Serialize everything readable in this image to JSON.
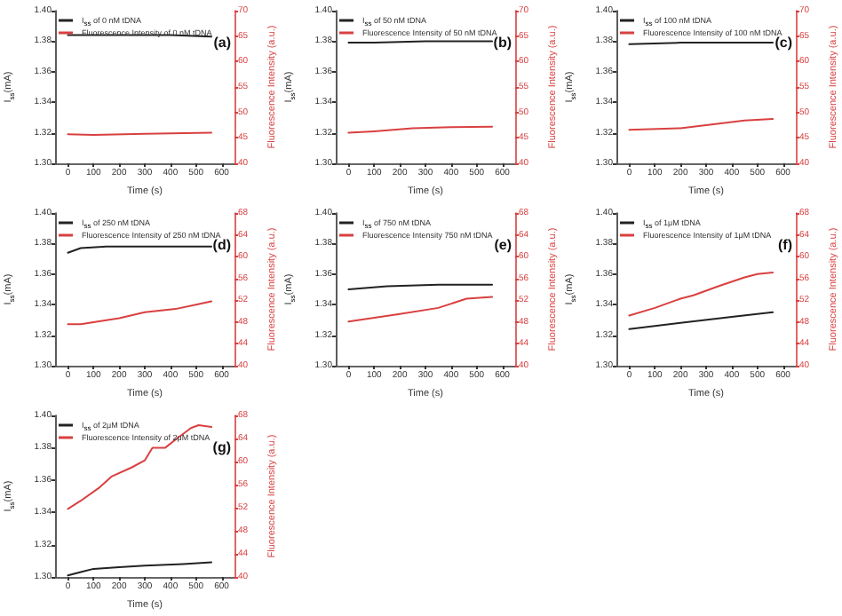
{
  "chart_data": [
    {
      "type": "line",
      "annotations": [
        "(a)"
      ],
      "xlabel": "Time (s)",
      "ylabel": "I$_{ss}$(mA)",
      "y2label": "Fluorescence Intensity (a.u.)",
      "xlim": [
        -50,
        650
      ],
      "xticks": [
        0,
        100,
        200,
        300,
        400,
        500,
        600
      ],
      "ylim": [
        1.3,
        1.4
      ],
      "yticks": [
        {
          "value": 1.3,
          "label": "1.30"
        },
        {
          "value": 1.32,
          "label": "1.32"
        },
        {
          "value": 1.34,
          "label": "1.34"
        },
        {
          "value": 1.36,
          "label": "1.36"
        },
        {
          "value": 1.38,
          "label": "1.38"
        },
        {
          "value": 1.4,
          "label": "1.40"
        }
      ],
      "y2lim": [
        40,
        70
      ],
      "y2ticks": [
        40,
        45,
        50,
        55,
        60,
        65,
        70
      ],
      "legend": "top left",
      "grid": false,
      "marker": "none",
      "series": [
        {
          "name": "I$_{ss}$ of 0 nM tDNA",
          "color": "#222222",
          "x": [
            0,
            200,
            400,
            560
          ],
          "values": [
            1.384,
            1.384,
            1.384,
            1.383
          ]
        },
        {
          "name": "Fluorescence Intensity of 0 nM tDNA",
          "color": "#d94040",
          "axis": "y2",
          "x": [
            0,
            100,
            300,
            560
          ],
          "values": [
            45.7,
            45.6,
            45.8,
            46.0
          ]
        }
      ]
    },
    {
      "type": "line",
      "annotations": [
        "(b)"
      ],
      "xlabel": "Time (s)",
      "ylabel": "I$_{ss}$(mA)",
      "y2label": "Fluorescence Intensity (a.u.)",
      "xlim": [
        -50,
        650
      ],
      "xticks": [
        0,
        100,
        200,
        300,
        400,
        500,
        600
      ],
      "ylim": [
        1.3,
        1.4
      ],
      "yticks": [
        {
          "value": 1.3,
          "label": "1.30"
        },
        {
          "value": 1.32,
          "label": "1.32"
        },
        {
          "value": 1.34,
          "label": "1.34"
        },
        {
          "value": 1.36,
          "label": "1.36"
        },
        {
          "value": 1.38,
          "label": "1.38"
        },
        {
          "value": 1.4,
          "label": "1.40"
        }
      ],
      "y2lim": [
        40,
        70
      ],
      "y2ticks": [
        40,
        45,
        50,
        55,
        60,
        65,
        70
      ],
      "legend": "top left",
      "grid": false,
      "marker": "none",
      "series": [
        {
          "name": "I$_{ss}$ of 50 nM tDNA",
          "color": "#222222",
          "x": [
            0,
            100,
            300,
            560
          ],
          "values": [
            1.379,
            1.379,
            1.38,
            1.38
          ]
        },
        {
          "name": "Fluorescence Intensity of 50 nM tDNA",
          "color": "#d94040",
          "axis": "y2",
          "x": [
            0,
            100,
            250,
            400,
            560
          ],
          "values": [
            46.0,
            46.3,
            46.9,
            47.1,
            47.2
          ]
        }
      ]
    },
    {
      "type": "line",
      "annotations": [
        "(c)"
      ],
      "xlabel": "Time (s)",
      "ylabel": "I$_{ss}$(mA)",
      "y2label": "Fluorescence Intensity (a.u.)",
      "xlim": [
        -50,
        650
      ],
      "xticks": [
        0,
        100,
        200,
        300,
        400,
        500,
        600
      ],
      "ylim": [
        1.3,
        1.4
      ],
      "yticks": [
        {
          "value": 1.3,
          "label": "1.30"
        },
        {
          "value": 1.32,
          "label": "1.32"
        },
        {
          "value": 1.34,
          "label": "1.34"
        },
        {
          "value": 1.36,
          "label": "1.36"
        },
        {
          "value": 1.38,
          "label": "1.38"
        },
        {
          "value": 1.4,
          "label": "1.40"
        }
      ],
      "y2lim": [
        40,
        70
      ],
      "y2ticks": [
        40,
        45,
        50,
        55,
        60,
        65,
        70
      ],
      "legend": "top left",
      "grid": false,
      "marker": "none",
      "series": [
        {
          "name": "I$_{ss}$ of 100 nM tDNA",
          "color": "#222222",
          "x": [
            0,
            200,
            400,
            560
          ],
          "values": [
            1.378,
            1.379,
            1.379,
            1.379
          ]
        },
        {
          "name": "Fluorescence Intensity of 100 nM tDNA",
          "color": "#d94040",
          "axis": "y2",
          "x": [
            0,
            200,
            350,
            450,
            560
          ],
          "values": [
            46.6,
            46.9,
            47.8,
            48.4,
            48.7
          ]
        }
      ]
    },
    {
      "type": "line",
      "annotations": [
        "(d)"
      ],
      "xlabel": "Time (s)",
      "ylabel": "I$_{ss}$(mA)",
      "y2label": "Fluorescence Intensity (a.u.)",
      "xlim": [
        -50,
        650
      ],
      "xticks": [
        0,
        100,
        200,
        300,
        400,
        500,
        600
      ],
      "ylim": [
        1.3,
        1.4
      ],
      "yticks": [
        {
          "value": 1.3,
          "label": "1.30"
        },
        {
          "value": 1.32,
          "label": "1.32"
        },
        {
          "value": 1.34,
          "label": "1.34"
        },
        {
          "value": 1.36,
          "label": "1.36"
        },
        {
          "value": 1.38,
          "label": "1.38"
        },
        {
          "value": 1.4,
          "label": "1.40"
        }
      ],
      "y2lim": [
        40,
        68
      ],
      "y2ticks": [
        40,
        44,
        48,
        52,
        56,
        60,
        64,
        68
      ],
      "legend": "top left",
      "grid": false,
      "marker": "none",
      "series": [
        {
          "name": "I$_{ss}$ of 250 nM tDNA",
          "color": "#222222",
          "x": [
            0,
            50,
            150,
            350,
            560
          ],
          "values": [
            1.374,
            1.377,
            1.378,
            1.378,
            1.378
          ]
        },
        {
          "name": "Fluorescence Intensity of 250 nM tDNA",
          "color": "#d94040",
          "axis": "y2",
          "x": [
            0,
            50,
            200,
            300,
            420,
            500,
            560
          ],
          "values": [
            47.6,
            47.6,
            48.7,
            49.8,
            50.4,
            51.2,
            51.8
          ]
        }
      ]
    },
    {
      "type": "line",
      "annotations": [
        "(e)"
      ],
      "xlabel": "Time (s)",
      "ylabel": "I$_{ss}$(mA)",
      "y2label": "Fluorescence Intensity (a.u.)",
      "xlim": [
        -50,
        650
      ],
      "xticks": [
        0,
        100,
        200,
        300,
        400,
        500,
        600
      ],
      "ylim": [
        1.3,
        1.4
      ],
      "yticks": [
        {
          "value": 1.3,
          "label": "1.30"
        },
        {
          "value": 1.32,
          "label": "1.32"
        },
        {
          "value": 1.34,
          "label": "1.34"
        },
        {
          "value": 1.36,
          "label": "1.36"
        },
        {
          "value": 1.38,
          "label": "1.38"
        },
        {
          "value": 1.4,
          "label": "1.40"
        }
      ],
      "y2lim": [
        40,
        68
      ],
      "y2ticks": [
        40,
        44,
        48,
        52,
        56,
        60,
        64,
        68
      ],
      "legend": "top left",
      "grid": false,
      "marker": "none",
      "series": [
        {
          "name": "I$_{ss}$ of 750 nM tDNA",
          "color": "#222222",
          "x": [
            0,
            150,
            350,
            560
          ],
          "values": [
            1.35,
            1.352,
            1.353,
            1.353
          ]
        },
        {
          "name": "Fluorescence Intensity 750 nM tDNA",
          "color": "#d94040",
          "axis": "y2",
          "x": [
            0,
            200,
            350,
            460,
            560
          ],
          "values": [
            48.1,
            49.5,
            50.6,
            52.3,
            52.6
          ]
        }
      ]
    },
    {
      "type": "line",
      "annotations": [
        "(f)"
      ],
      "xlabel": "Time (s)",
      "ylabel": "I$_{ss}$(mA)",
      "y2label": "Fluorescence Intensity (a.u.)",
      "xlim": [
        -50,
        650
      ],
      "xticks": [
        0,
        100,
        200,
        300,
        400,
        500,
        600
      ],
      "ylim": [
        1.3,
        1.4
      ],
      "yticks": [
        {
          "value": 1.3,
          "label": "1.30"
        },
        {
          "value": 1.32,
          "label": "1.32"
        },
        {
          "value": 1.34,
          "label": "1.34"
        },
        {
          "value": 1.36,
          "label": "1.36"
        },
        {
          "value": 1.38,
          "label": "1.38"
        },
        {
          "value": 1.4,
          "label": "1.40"
        }
      ],
      "y2lim": [
        40,
        68
      ],
      "y2ticks": [
        40,
        44,
        48,
        52,
        56,
        60,
        64,
        68
      ],
      "legend": "top left",
      "grid": false,
      "marker": "none",
      "series": [
        {
          "name": "I$_{ss}$ of 1μM tDNA",
          "color": "#222222",
          "x": [
            0,
            200,
            400,
            560
          ],
          "values": [
            1.324,
            1.328,
            1.332,
            1.335
          ]
        },
        {
          "name": "Fluorescence Intensity of 1μM tDNA",
          "color": "#d94040",
          "axis": "y2",
          "x": [
            0,
            100,
            200,
            250,
            350,
            450,
            500,
            560
          ],
          "values": [
            49.2,
            50.6,
            52.3,
            52.9,
            54.6,
            56.2,
            56.8,
            57.1
          ]
        }
      ]
    },
    {
      "type": "line",
      "annotations": [
        "(g)"
      ],
      "xlabel": "Time (s)",
      "ylabel": "I$_{ss}$(mA)",
      "y2label": "Fluorescence Intensity (a.u.)",
      "xlim": [
        -50,
        650
      ],
      "xticks": [
        0,
        100,
        200,
        300,
        400,
        500,
        600
      ],
      "ylim": [
        1.3,
        1.4
      ],
      "yticks": [
        {
          "value": 1.3,
          "label": "1.30"
        },
        {
          "value": 1.32,
          "label": "1.32"
        },
        {
          "value": 1.34,
          "label": "1.34"
        },
        {
          "value": 1.36,
          "label": "1.36"
        },
        {
          "value": 1.38,
          "label": "1.38"
        },
        {
          "value": 1.4,
          "label": "1.40"
        }
      ],
      "y2lim": [
        40,
        68
      ],
      "y2ticks": [
        40,
        44,
        48,
        52,
        56,
        60,
        64,
        68
      ],
      "legend": "top left",
      "grid": false,
      "marker": "none",
      "series": [
        {
          "name": "I$_{ss}$ of 2μM tDNA",
          "color": "#222222",
          "x": [
            0,
            50,
            100,
            200,
            300,
            450,
            560
          ],
          "values": [
            1.301,
            1.303,
            1.305,
            1.306,
            1.307,
            1.308,
            1.309
          ]
        },
        {
          "name": "Fluorescence Intensity of 2μM tDNA",
          "color": "#d94040",
          "axis": "y2",
          "x": [
            0,
            50,
            120,
            170,
            250,
            300,
            330,
            380,
            420,
            480,
            510,
            560
          ],
          "values": [
            51.8,
            53.2,
            55.4,
            57.4,
            59.0,
            60.2,
            62.4,
            62.4,
            63.8,
            65.8,
            66.3,
            66.0
          ]
        }
      ]
    }
  ]
}
